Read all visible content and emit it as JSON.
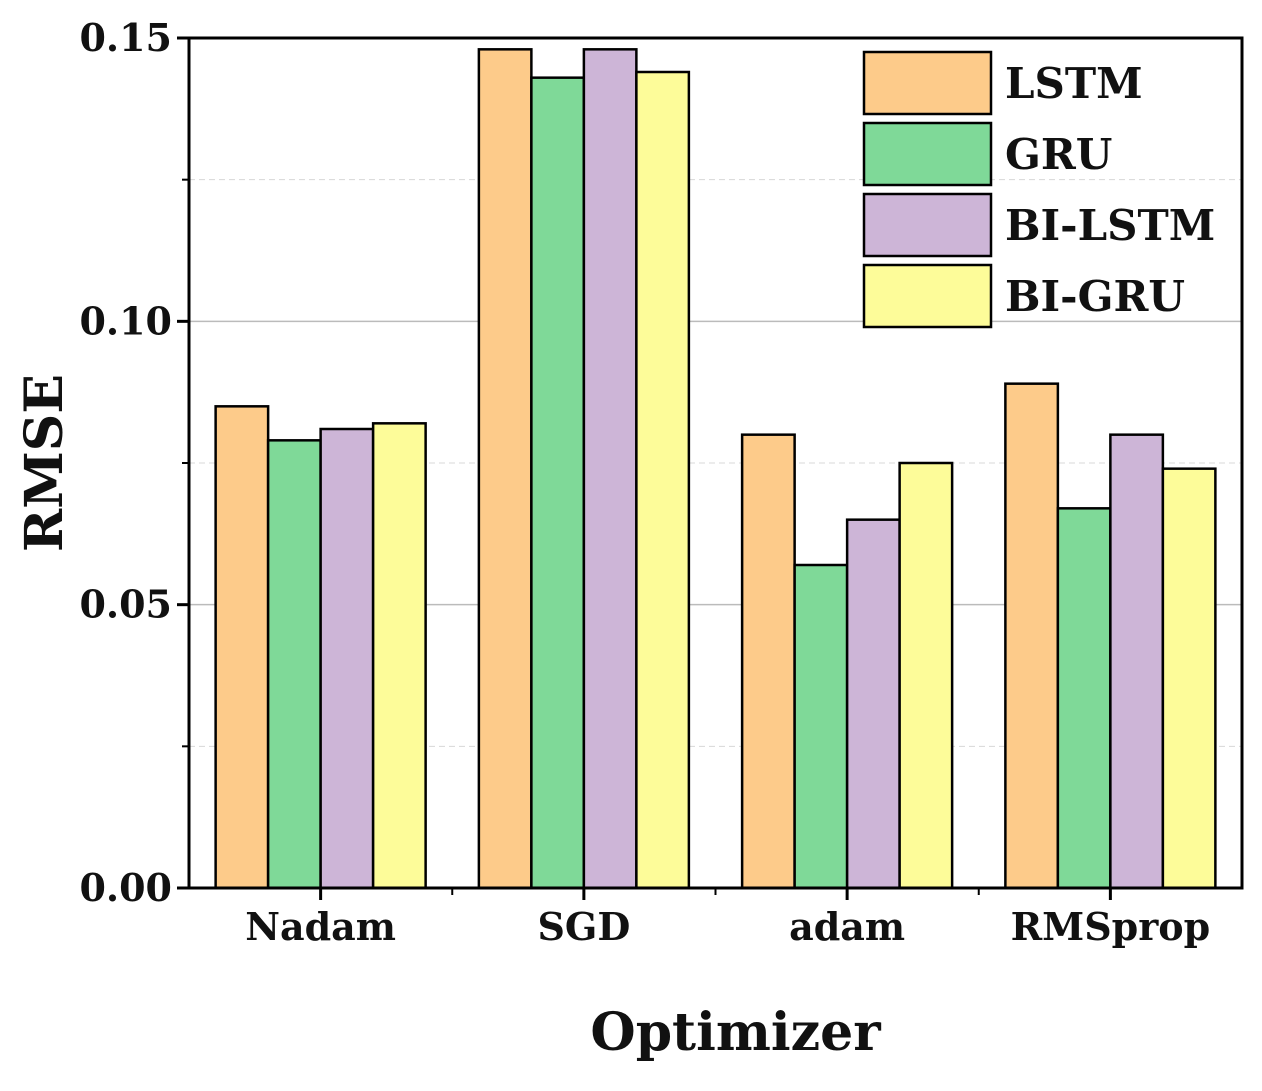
{
  "chart_data": {
    "type": "bar",
    "title": "",
    "xlabel": "Optimizer",
    "ylabel": "RMSE",
    "categories": [
      "Nadam",
      "SGD",
      "adam",
      "RMSprop"
    ],
    "series": [
      {
        "name": "LSTM",
        "color": "#FDCB8A",
        "values": [
          0.085,
          0.148,
          0.08,
          0.089
        ]
      },
      {
        "name": "GRU",
        "color": "#7FD998",
        "values": [
          0.079,
          0.143,
          0.057,
          0.067
        ]
      },
      {
        "name": "BI-LSTM",
        "color": "#CDB5D7",
        "values": [
          0.081,
          0.148,
          0.065,
          0.08
        ]
      },
      {
        "name": "BI-GRU",
        "color": "#FDFC99",
        "values": [
          0.082,
          0.144,
          0.075,
          0.074
        ]
      }
    ],
    "ylim": [
      0,
      0.15
    ],
    "yticks": [
      0.0,
      0.05,
      0.1,
      0.15
    ],
    "ytick_labels": [
      "0.00",
      "0.05",
      "0.10",
      "0.15"
    ],
    "grid": true,
    "legend_position": "top-right"
  }
}
